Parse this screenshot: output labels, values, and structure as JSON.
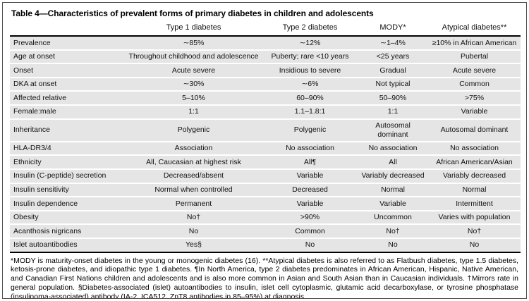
{
  "title": "Table 4—Characteristics of prevalent forms of primary diabetes in children and adolescents",
  "table": {
    "columns": [
      "Type 1 diabetes",
      "Type 2 diabetes",
      "MODY*",
      "Atypical diabetes**"
    ],
    "rows": [
      {
        "label": "Prevalence",
        "values": [
          "∼85%",
          "∼12%",
          "∼1–4%",
          "≥10% in African American"
        ]
      },
      {
        "label": "Age at onset",
        "values": [
          "Throughout childhood and adolescence",
          "Puberty; rare <10 years",
          "<25 years",
          "Pubertal"
        ]
      },
      {
        "label": "Onset",
        "values": [
          "Acute severe",
          "Insidious to severe",
          "Gradual",
          "Acute severe"
        ]
      },
      {
        "label": "DKA at onset",
        "values": [
          "∼30%",
          "∼6%",
          "Not typical",
          "Common"
        ]
      },
      {
        "label": "Affected relative",
        "values": [
          "5–10%",
          "60–90%",
          "50–90%",
          ">75%"
        ]
      },
      {
        "label": "Female:male",
        "values": [
          "1:1",
          "1.1–1.8:1",
          "1:1",
          "Variable"
        ]
      },
      {
        "label": "Inheritance",
        "values": [
          "Polygenic",
          "Polygenic",
          "Autosomal dominant",
          "Autosomal dominant"
        ]
      },
      {
        "label": "HLA-DR3/4",
        "values": [
          "Association",
          "No association",
          "No association",
          "No association"
        ]
      },
      {
        "label": "Ethnicity",
        "values": [
          "All, Caucasian at highest risk",
          "All¶",
          "All",
          "African American/Asian"
        ]
      },
      {
        "label": "Insulin (C-peptide) secretion",
        "values": [
          "Decreased/absent",
          "Variable",
          "Variably decreased",
          "Variably decreased"
        ]
      },
      {
        "label": "Insulin sensitivity",
        "values": [
          "Normal when controlled",
          "Decreased",
          "Normal",
          "Normal"
        ]
      },
      {
        "label": "Insulin dependence",
        "values": [
          "Permanent",
          "Variable",
          "Variable",
          "Intermittent"
        ]
      },
      {
        "label": "Obesity",
        "values": [
          "No†",
          ">90%",
          "Uncommon",
          "Varies with population"
        ]
      },
      {
        "label": "Acanthosis nigricans",
        "values": [
          "No",
          "Common",
          "No†",
          "No†"
        ]
      },
      {
        "label": "Islet autoantibodies",
        "values": [
          "Yes§",
          "No",
          "No",
          "No"
        ]
      }
    ]
  },
  "footnote": "*MODY is maturity-onset diabetes in the young or monogenic diabetes (16). **Atypical diabetes is also referred to as Flatbush diabetes, type 1.5 diabetes, ketosis-prone diabetes, and idiopathic type 1 diabetes. ¶In North America, type 2 diabetes predominates in African American, Hispanic, Native American, and Canadian First Nations children and adolescents and is also more common in Asian and South Asian than in Caucasian individuals. †Mirrors rate in general population. §Diabetes-associated (islet) autoantibodies to insulin, islet cell cytoplasmic, glutamic acid decarboxylase, or tyrosine phosphatase (insulinoma-associated) antibody (IA-2, ICA512, ZnT8 antibodies in 85–95%) at diagnosis.",
  "colors": {
    "row_background": "#e5e5e5",
    "rule": "#000000",
    "page_background": "#ffffff",
    "outer_border": "#4f4f4f"
  }
}
